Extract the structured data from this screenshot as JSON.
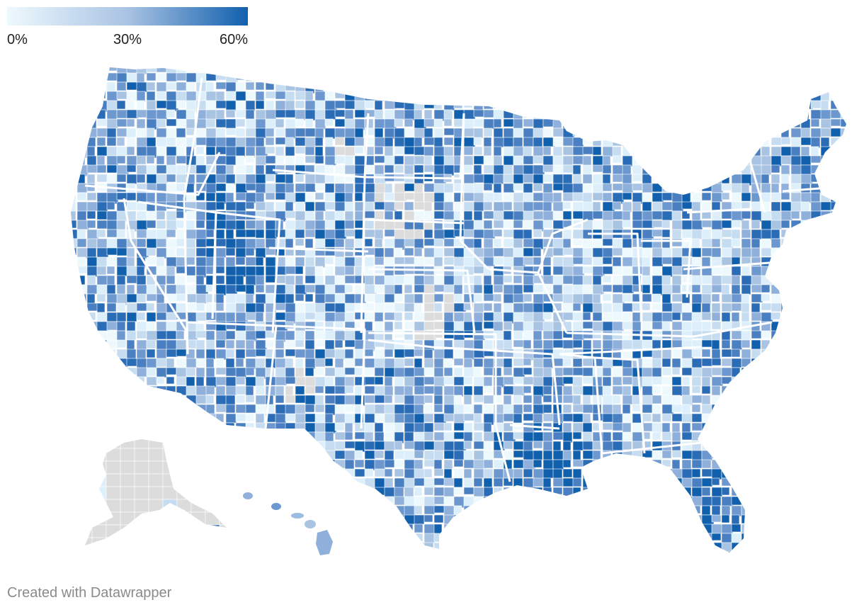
{
  "legend": {
    "labels": [
      "0%",
      "30%",
      "60%"
    ],
    "colors": [
      "#eef9fd",
      "#a9c3e3",
      "#1160ae"
    ]
  },
  "map": {
    "no_data_color": "#dcdcdc"
  },
  "footer": {
    "credit": "Created with Datawrapper"
  }
}
